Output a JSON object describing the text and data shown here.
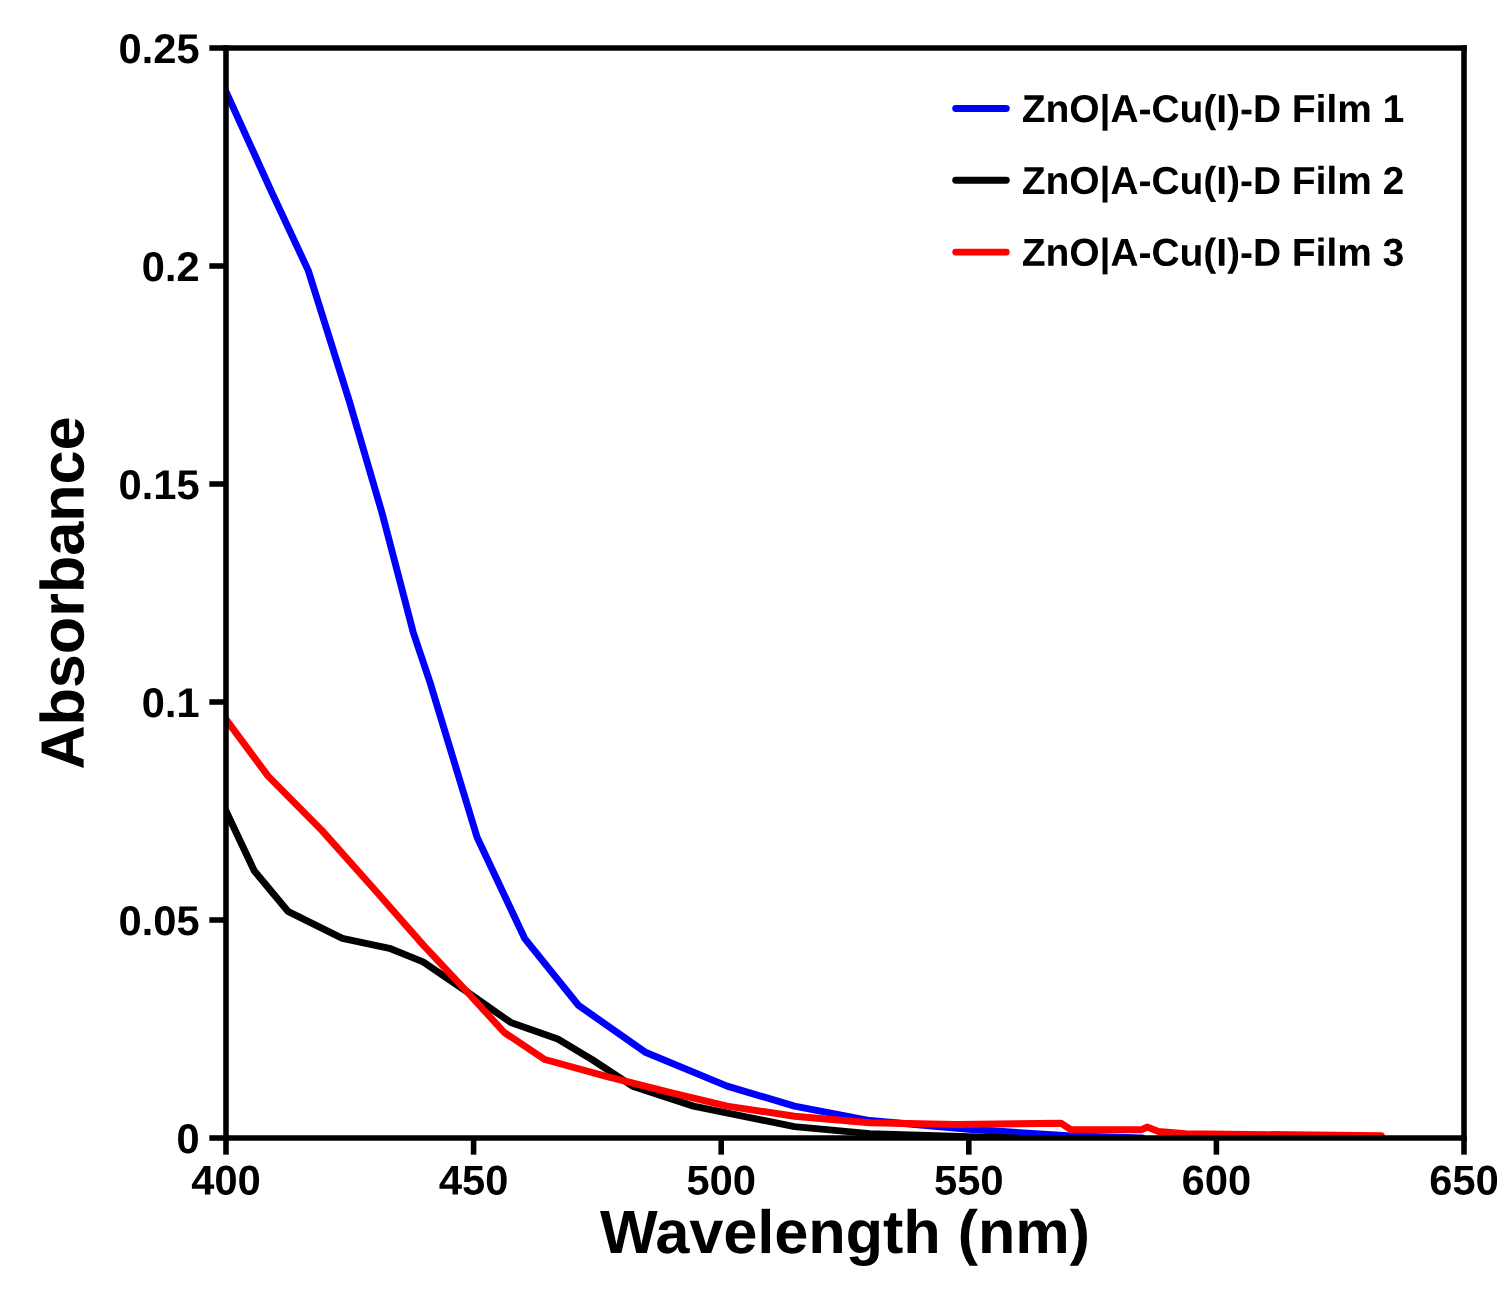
{
  "chart_data": {
    "type": "line",
    "xlabel": "Wavelength (nm)",
    "ylabel": "Absorbance",
    "xlim": [
      400,
      650
    ],
    "xticks": [
      400,
      450,
      500,
      550,
      600,
      650
    ],
    "ylim": [
      0,
      0.25
    ],
    "yticks": [
      0,
      0.05,
      0.1,
      0.15,
      0.2,
      0.25
    ],
    "grid": false,
    "legend": "top right",
    "marker": "none",
    "line_style": "solid",
    "series": [
      {
        "name": "ZnO|A-Cu(I)-D Film 1",
        "color": "#0000ff",
        "x": [
          400,
          409.2,
          416.6,
          424.9,
          431.6,
          437.8,
          441.2,
          450.7,
          460.3,
          471.2,
          484.8,
          501.2,
          514.8,
          530,
          550,
          570,
          585
        ],
        "values": [
          0.24,
          0.217,
          0.199,
          0.169,
          0.143,
          0.116,
          0.1045,
          0.069,
          0.0458,
          0.0304,
          0.0196,
          0.0119,
          0.0073,
          0.004,
          0.002,
          0.0005,
          0
        ]
      },
      {
        "name": "ZnO|A-Cu(I)-D Film 2",
        "color": "#000000",
        "x": [
          400,
          405.7,
          412.5,
          423.5,
          433,
          439.8,
          448.7,
          457.5,
          467,
          473.9,
          482.1,
          494.4,
          514.8,
          530,
          550,
          560
        ],
        "values": [
          0.075,
          0.0613,
          0.052,
          0.0458,
          0.0435,
          0.0404,
          0.0335,
          0.0265,
          0.0227,
          0.018,
          0.0119,
          0.0073,
          0.0026,
          0.001,
          0.0003,
          0
        ]
      },
      {
        "name": "ZnO|A-Cu(I)-D Film 3",
        "color": "#ff0000",
        "x": [
          400,
          408.5,
          419.4,
          430.3,
          439.8,
          448.7,
          456.2,
          464.4,
          476.6,
          490.2,
          501.2,
          514.8,
          530,
          547.5,
          568.6,
          570.6,
          584.9,
          586,
          588.3,
          593.8,
          633.3
        ],
        "values": [
          0.096,
          0.083,
          0.0705,
          0.0566,
          0.0443,
          0.0335,
          0.0242,
          0.018,
          0.0142,
          0.0103,
          0.0073,
          0.005,
          0.0035,
          0.0031,
          0.0034,
          0.0019,
          0.0019,
          0.0025,
          0.0015,
          0.001,
          0.0005
        ]
      }
    ]
  }
}
